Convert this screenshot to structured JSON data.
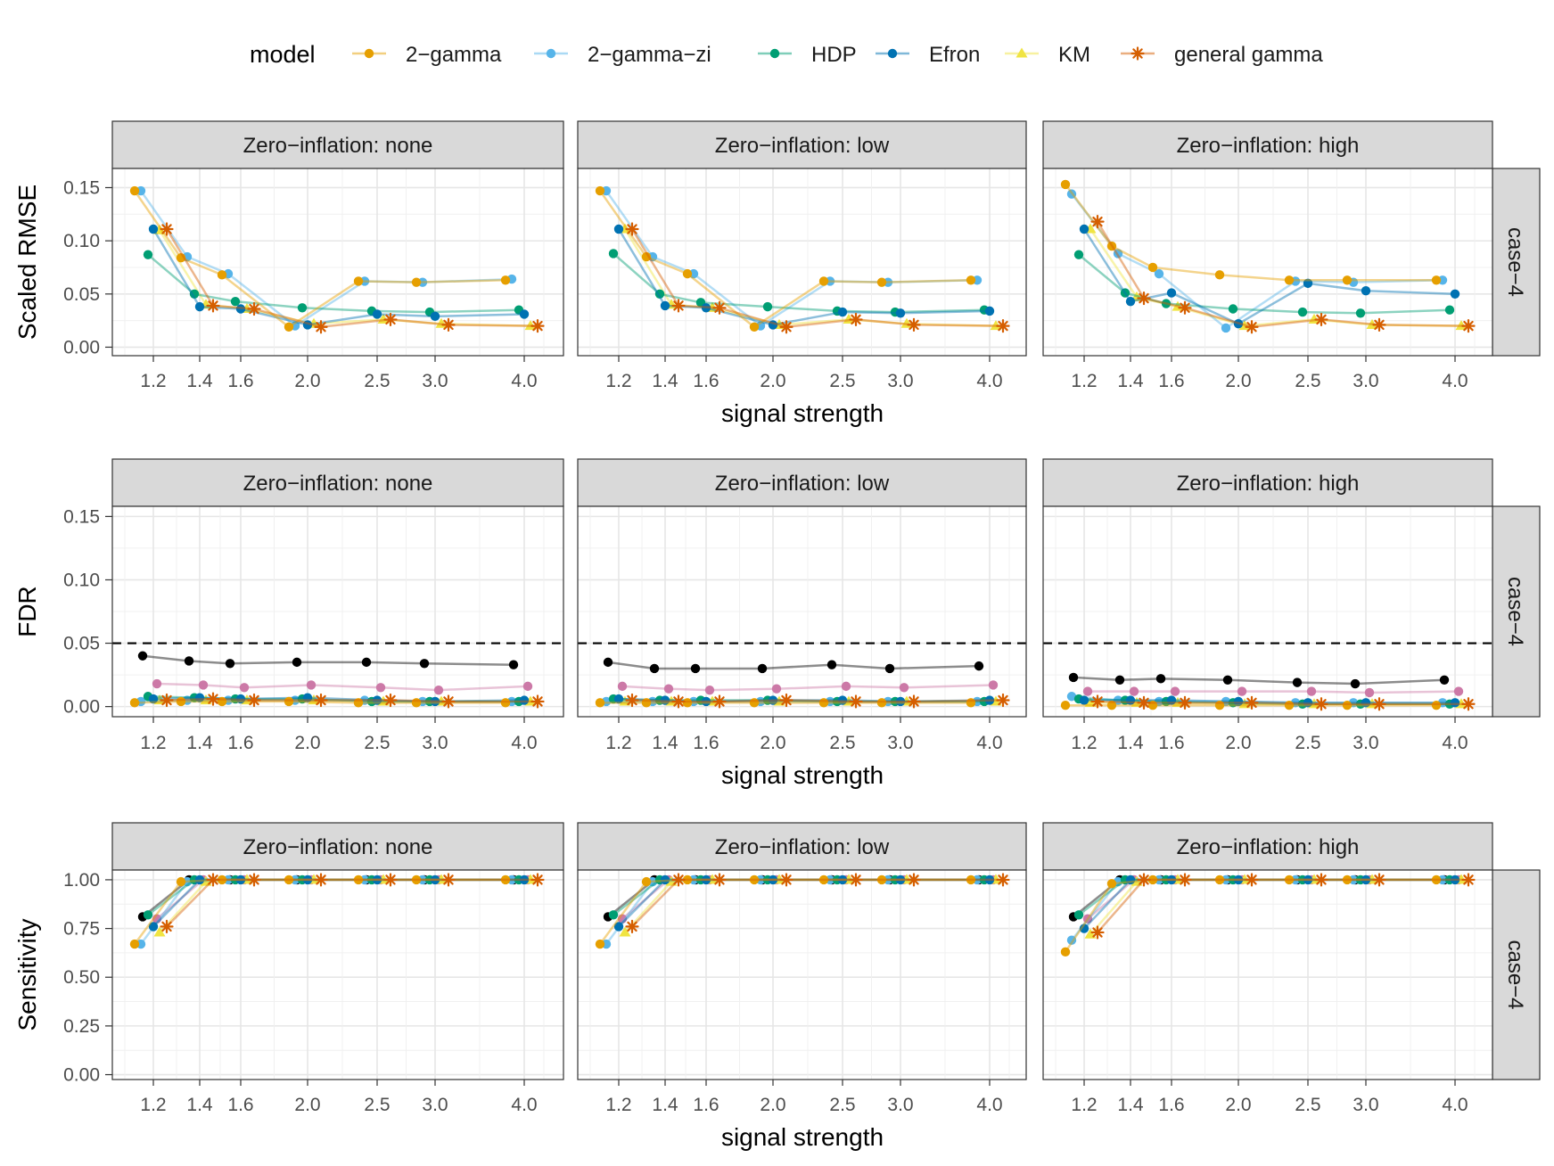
{
  "legend": {
    "title": "model",
    "entries": [
      {
        "label": "2−gamma",
        "color": "#E69F00",
        "shape": "circle"
      },
      {
        "label": "2−gamma−zi",
        "color": "#56B4E9",
        "shape": "circle"
      },
      {
        "label": "HDP",
        "color": "#009E73",
        "shape": "circle"
      },
      {
        "label": "Efron",
        "color": "#0072B2",
        "shape": "circle"
      },
      {
        "label": "KM",
        "color": "#F0E442",
        "shape": "triangle"
      },
      {
        "label": "general gamma",
        "color": "#D55E00",
        "shape": "asterisk"
      }
    ]
  },
  "extra_series_colors": {
    "unlabeled_black": "#000000",
    "unlabeled_pink": "#CC79A7"
  },
  "chart_data": {
    "type": "line",
    "x_categories": [
      "1.2",
      "1.4",
      "1.6",
      "2.0",
      "2.5",
      "3.0",
      "4.0"
    ],
    "xlabel": "signal strength",
    "strip_right": "case−4",
    "columns": [
      "Zero−inflation: none",
      "Zero−inflation: low",
      "Zero−inflation: high"
    ],
    "panels": [
      {
        "ylabel": "Scaled RMSE",
        "ylim": [
          -0.008,
          0.168
        ],
        "yticks": [
          0,
          0.05,
          0.1,
          0.15
        ],
        "ytick_labels": [
          "0.00",
          "0.05",
          "0.10",
          "0.15"
        ],
        "hline": null,
        "cols": [
          {
            "2-gamma": [
              0.147,
              0.084,
              0.068,
              0.019,
              0.062,
              0.061,
              0.063
            ],
            "2-gamma-zi": [
              0.147,
              0.085,
              0.069,
              0.02,
              0.062,
              0.061,
              0.064
            ],
            "HDP": [
              0.087,
              0.05,
              0.043,
              0.037,
              0.034,
              0.033,
              0.035
            ],
            "Efron": [
              0.111,
              0.038,
              0.036,
              0.021,
              0.031,
              0.029,
              0.031
            ],
            "KM": [
              0.11,
              0.04,
              0.036,
              0.022,
              0.026,
              0.022,
              0.02
            ],
            "general gamma": [
              0.111,
              0.039,
              0.036,
              0.019,
              0.026,
              0.021,
              0.02
            ]
          },
          {
            "2-gamma": [
              0.147,
              0.085,
              0.069,
              0.019,
              0.062,
              0.061,
              0.063
            ],
            "2-gamma-zi": [
              0.147,
              0.085,
              0.069,
              0.02,
              0.062,
              0.061,
              0.063
            ],
            "HDP": [
              0.088,
              0.05,
              0.042,
              0.038,
              0.034,
              0.033,
              0.035
            ],
            "Efron": [
              0.111,
              0.039,
              0.037,
              0.021,
              0.033,
              0.032,
              0.034
            ],
            "KM": [
              0.111,
              0.04,
              0.037,
              0.021,
              0.026,
              0.022,
              0.02
            ],
            "general gamma": [
              0.111,
              0.039,
              0.037,
              0.019,
              0.026,
              0.021,
              0.02
            ]
          },
          {
            "2-gamma": [
              0.153,
              0.095,
              0.075,
              0.068,
              0.063,
              0.063,
              0.063
            ],
            "2-gamma-zi": [
              0.144,
              0.088,
              0.069,
              0.018,
              0.062,
              0.061,
              0.063
            ],
            "HDP": [
              0.087,
              0.051,
              0.041,
              0.036,
              0.033,
              0.032,
              0.035
            ],
            "Efron": [
              0.111,
              0.043,
              0.051,
              0.022,
              0.06,
              0.053,
              0.05
            ],
            "KM": [
              0.111,
              0.047,
              0.038,
              0.02,
              0.026,
              0.021,
              0.02
            ],
            "general gamma": [
              0.118,
              0.046,
              0.037,
              0.019,
              0.026,
              0.021,
              0.02
            ]
          }
        ]
      },
      {
        "ylabel": "FDR",
        "ylim": [
          -0.008,
          0.158
        ],
        "yticks": [
          0,
          0.05,
          0.1,
          0.15
        ],
        "ytick_labels": [
          "0.00",
          "0.05",
          "0.10",
          "0.15"
        ],
        "hline": 0.05,
        "cols": [
          {
            "2-gamma": [
              0.003,
              0.004,
              0.004,
              0.004,
              0.003,
              0.003,
              0.003
            ],
            "2-gamma-zi": [
              0.004,
              0.005,
              0.005,
              0.005,
              0.005,
              0.004,
              0.004
            ],
            "HDP": [
              0.008,
              0.007,
              0.006,
              0.006,
              0.004,
              0.004,
              0.004
            ],
            "Efron": [
              0.006,
              0.007,
              0.006,
              0.007,
              0.005,
              0.004,
              0.005
            ],
            "KM": [
              0.005,
              0.005,
              0.005,
              0.005,
              0.004,
              0.004,
              0.004
            ],
            "general gamma": [
              0.005,
              0.006,
              0.005,
              0.005,
              0.005,
              0.004,
              0.004
            ],
            "black": [
              0.04,
              0.036,
              0.034,
              0.035,
              0.035,
              0.034,
              0.033
            ],
            "pink": [
              0.018,
              0.017,
              0.015,
              0.017,
              0.015,
              0.013,
              0.016
            ]
          },
          {
            "2-gamma": [
              0.003,
              0.003,
              0.003,
              0.003,
              0.003,
              0.003,
              0.003
            ],
            "2-gamma-zi": [
              0.004,
              0.004,
              0.004,
              0.004,
              0.004,
              0.004,
              0.004
            ],
            "HDP": [
              0.006,
              0.005,
              0.005,
              0.005,
              0.004,
              0.004,
              0.004
            ],
            "Efron": [
              0.006,
              0.005,
              0.004,
              0.005,
              0.005,
              0.004,
              0.005
            ],
            "KM": [
              0.004,
              0.004,
              0.004,
              0.004,
              0.004,
              0.004,
              0.004
            ],
            "general gamma": [
              0.005,
              0.004,
              0.004,
              0.005,
              0.004,
              0.004,
              0.005
            ],
            "black": [
              0.035,
              0.03,
              0.03,
              0.03,
              0.033,
              0.03,
              0.032
            ],
            "pink": [
              0.016,
              0.014,
              0.013,
              0.014,
              0.016,
              0.015,
              0.017
            ]
          },
          {
            "2-gamma": [
              0.001,
              0.001,
              0.001,
              0.001,
              0.001,
              0.001,
              0.001
            ],
            "2-gamma-zi": [
              0.008,
              0.005,
              0.004,
              0.004,
              0.003,
              0.003,
              0.003
            ],
            "HDP": [
              0.006,
              0.005,
              0.004,
              0.003,
              0.002,
              0.002,
              0.002
            ],
            "Efron": [
              0.005,
              0.005,
              0.005,
              0.004,
              0.003,
              0.003,
              0.003
            ],
            "KM": [
              0.003,
              0.003,
              0.003,
              0.002,
              0.002,
              0.002,
              0.002
            ],
            "general gamma": [
              0.004,
              0.003,
              0.003,
              0.003,
              0.002,
              0.002,
              0.002
            ],
            "black": [
              0.023,
              0.021,
              0.022,
              0.021,
              0.019,
              0.018,
              0.021
            ],
            "pink": [
              0.012,
              0.012,
              0.012,
              0.012,
              0.012,
              0.011,
              0.012
            ]
          }
        ]
      },
      {
        "ylabel": "Sensitivity",
        "ylim": [
          -0.025,
          1.05
        ],
        "yticks": [
          0,
          0.25,
          0.5,
          0.75,
          1
        ],
        "ytick_labels": [
          "0.00",
          "0.25",
          "0.50",
          "0.75",
          "1.00"
        ],
        "hline": null,
        "cols": [
          {
            "2-gamma": [
              0.67,
              0.99,
              1.0,
              1.0,
              1.0,
              1.0,
              1.0
            ],
            "2-gamma-zi": [
              0.67,
              0.99,
              1.0,
              1.0,
              1.0,
              1.0,
              1.0
            ],
            "HDP": [
              0.82,
              1.0,
              1.0,
              1.0,
              1.0,
              1.0,
              1.0
            ],
            "Efron": [
              0.76,
              1.0,
              1.0,
              1.0,
              1.0,
              1.0,
              1.0
            ],
            "KM": [
              0.73,
              0.99,
              1.0,
              1.0,
              1.0,
              1.0,
              1.0
            ],
            "general gamma": [
              0.76,
              1.0,
              1.0,
              1.0,
              1.0,
              1.0,
              1.0
            ],
            "black": [
              0.81,
              1.0,
              1.0,
              1.0,
              1.0,
              1.0,
              1.0
            ],
            "pink": [
              0.8,
              1.0,
              1.0,
              1.0,
              1.0,
              1.0,
              1.0
            ]
          },
          {
            "2-gamma": [
              0.67,
              0.99,
              1.0,
              1.0,
              1.0,
              1.0,
              1.0
            ],
            "2-gamma-zi": [
              0.67,
              0.99,
              1.0,
              1.0,
              1.0,
              1.0,
              1.0
            ],
            "HDP": [
              0.82,
              1.0,
              1.0,
              1.0,
              1.0,
              1.0,
              1.0
            ],
            "Efron": [
              0.76,
              1.0,
              1.0,
              1.0,
              1.0,
              1.0,
              1.0
            ],
            "KM": [
              0.73,
              0.99,
              1.0,
              1.0,
              1.0,
              1.0,
              1.0
            ],
            "general gamma": [
              0.76,
              1.0,
              1.0,
              1.0,
              1.0,
              1.0,
              1.0
            ],
            "black": [
              0.81,
              1.0,
              1.0,
              1.0,
              1.0,
              1.0,
              1.0
            ],
            "pink": [
              0.8,
              1.0,
              1.0,
              1.0,
              1.0,
              1.0,
              1.0
            ]
          },
          {
            "2-gamma": [
              0.63,
              0.98,
              1.0,
              1.0,
              1.0,
              1.0,
              1.0
            ],
            "2-gamma-zi": [
              0.69,
              0.99,
              1.0,
              1.0,
              1.0,
              1.0,
              1.0
            ],
            "HDP": [
              0.82,
              1.0,
              1.0,
              1.0,
              1.0,
              1.0,
              1.0
            ],
            "Efron": [
              0.75,
              1.0,
              1.0,
              1.0,
              1.0,
              1.0,
              1.0
            ],
            "KM": [
              0.72,
              0.99,
              1.0,
              1.0,
              1.0,
              1.0,
              1.0
            ],
            "general gamma": [
              0.73,
              1.0,
              1.0,
              1.0,
              1.0,
              1.0,
              1.0
            ],
            "black": [
              0.81,
              1.0,
              1.0,
              1.0,
              1.0,
              1.0,
              1.0
            ],
            "pink": [
              0.8,
              1.0,
              1.0,
              1.0,
              1.0,
              1.0,
              1.0
            ]
          }
        ]
      }
    ]
  }
}
